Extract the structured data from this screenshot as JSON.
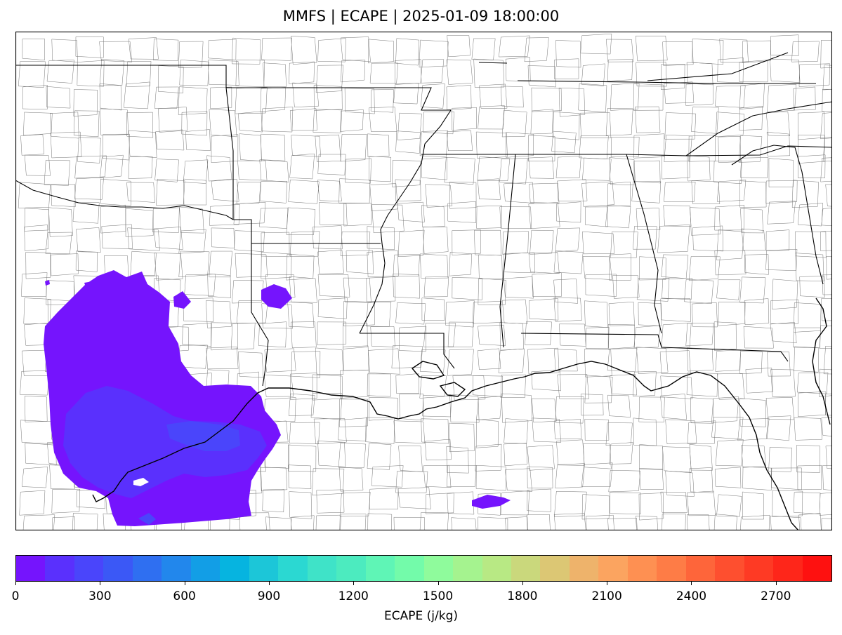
{
  "title": "MMFS | ECAPE | 2025-01-09 18:00:00",
  "colorbar": {
    "label": "ECAPE (j/kg)",
    "min": 0,
    "max": 2900,
    "step": 100,
    "tick_values": [
      0,
      300,
      600,
      900,
      1200,
      1500,
      1800,
      2100,
      2400,
      2700
    ],
    "tick_labels": [
      "0",
      "300",
      "600",
      "900",
      "1200",
      "1500",
      "1800",
      "2100",
      "2400",
      "2700"
    ],
    "colors": [
      "#7514fd",
      "#5a30fd",
      "#4a45fb",
      "#3b58f6",
      "#2f6ff1",
      "#2287ec",
      "#129ee6",
      "#06b4e0",
      "#1cc6d8",
      "#2bd8d2",
      "#3fe3c8",
      "#4cebbf",
      "#5ff5b6",
      "#73fbaa",
      "#8ffb9c",
      "#a5f38f",
      "#b8e984",
      "#cad87c",
      "#dcc774",
      "#eeb36b",
      "#fba460",
      "#fe9052",
      "#fe7c46",
      "#fe653a",
      "#fe4f2f",
      "#fe3a24",
      "#fe261a",
      "#fe1110"
    ]
  },
  "map": {
    "colors": {
      "ecape_low": "#7514fd",
      "ecape_mid": "#5a30fd",
      "ecape_high": "#4a45fb",
      "boundary": "#000000",
      "county": "#555555"
    }
  }
}
